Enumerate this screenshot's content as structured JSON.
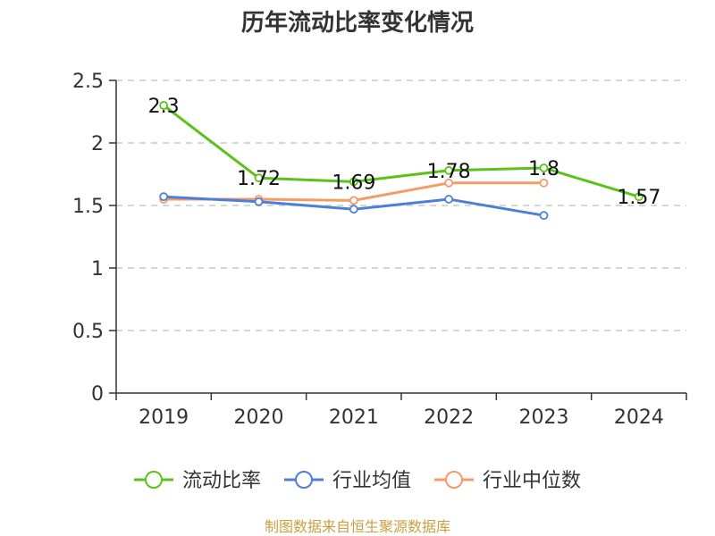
{
  "chart_data": {
    "type": "line",
    "title": "历年流动比率变化情况",
    "categories": [
      "2019",
      "2020",
      "2021",
      "2022",
      "2023",
      "2024"
    ],
    "ylim": [
      0,
      2.5
    ],
    "yticks": [
      "0",
      "0.5",
      "1",
      "1.5",
      "2",
      "2.5"
    ],
    "grid": true,
    "legend_position": "bottom",
    "series": [
      {
        "name": "流动比率",
        "color": "#5bc219",
        "values": [
          2.3,
          1.72,
          1.69,
          1.78,
          1.8,
          1.57
        ],
        "labels": [
          "2.3",
          "1.72",
          "1.69",
          "1.78",
          "1.8",
          "1.57"
        ],
        "show_labels": true
      },
      {
        "name": "行业均值",
        "color": "#4e7fd8",
        "values": [
          1.57,
          1.53,
          1.47,
          1.55,
          1.42,
          null
        ],
        "labels": [],
        "show_labels": false
      },
      {
        "name": "行业中位数",
        "color": "#f59b66",
        "values": [
          1.55,
          1.55,
          1.54,
          1.68,
          1.68,
          null
        ],
        "labels": [],
        "show_labels": false
      }
    ],
    "source": "制图数据来自恒生聚源数据库"
  }
}
